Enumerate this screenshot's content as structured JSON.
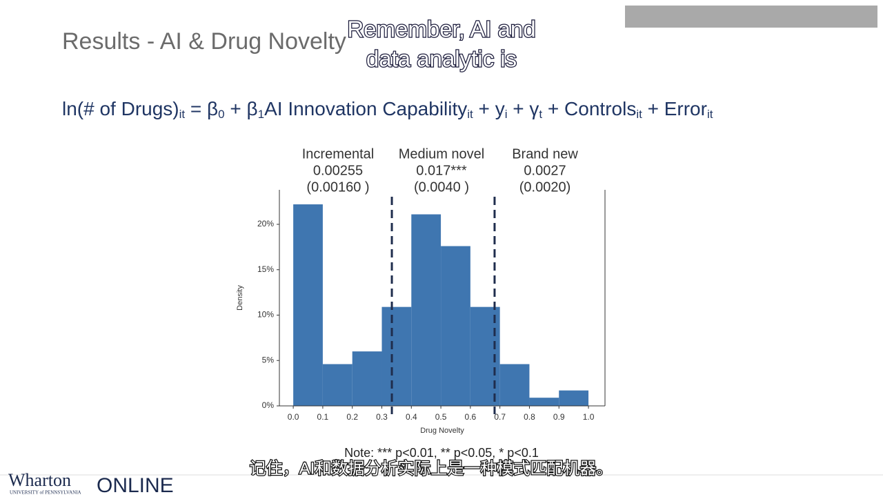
{
  "slide": {
    "title": "Results - AI & Drug Novelty",
    "caption_lines": [
      "Remember, AI and",
      "data analytic is"
    ],
    "equation": [
      {
        "text": "ln(# of Drugs)",
        "sub": "it"
      },
      {
        "text": "  =  β",
        "sub": "0"
      },
      {
        "text": "  +  β",
        "sub": "1"
      },
      {
        "text": "AI Innovation Capability",
        "sub": "it"
      },
      {
        "text": " + y",
        "sub": "i"
      },
      {
        "text": " + γ",
        "sub": "t"
      },
      {
        "text": " +  Controls",
        "sub": "it"
      },
      {
        "text": " +  Error",
        "sub": "it"
      }
    ],
    "columns": [
      [
        "Incremental",
        "0.00255",
        "(0.00160 )"
      ],
      [
        "Medium novel",
        "0.017***",
        "(0.0040 )"
      ],
      [
        "Brand new",
        "0.0027",
        "(0.0020)"
      ]
    ],
    "note": "Note: *** p<0.01, ** p<0.05, * p<0.1",
    "subtitle": "记住，AI和数据分析实际上是一种模式匹配机器。",
    "logo": {
      "name": "Wharton",
      "university": "UNIVERSITY of PENNSYLVANIA",
      "online": "ONLINE"
    }
  },
  "chart_data": {
    "type": "histogram",
    "bins": [
      0,
      0.1,
      0.2,
      0.3,
      0.4,
      0.5,
      0.6,
      0.7,
      0.8,
      0.9,
      1
    ],
    "counts": [
      22.2,
      4.6,
      6.0,
      10.9,
      21.1,
      17.6,
      10.9,
      4.6,
      0.9,
      1.7
    ],
    "color": "#3f76b0",
    "xlabel": "Drug Novelty",
    "ylabel": "Density",
    "xlim": [
      -0.047,
      1.056
    ],
    "ylim": [
      0,
      23.8
    ],
    "xticks": [
      {
        "value": 0,
        "label": "0.0"
      },
      0.1,
      0.2,
      0.3,
      0.4,
      0.5,
      0.6,
      0.7,
      0.8,
      0.9,
      {
        "value": 1,
        "label": "1.0"
      }
    ],
    "yticks": [
      {
        "value": 0,
        "label": "0%"
      },
      {
        "value": 5,
        "label": "5%"
      },
      {
        "value": 10,
        "label": "10%"
      },
      {
        "value": 15,
        "label": "15%"
      },
      {
        "value": 20,
        "label": "20%"
      }
    ],
    "vlines": [
      0.334,
      0.682
    ]
  }
}
